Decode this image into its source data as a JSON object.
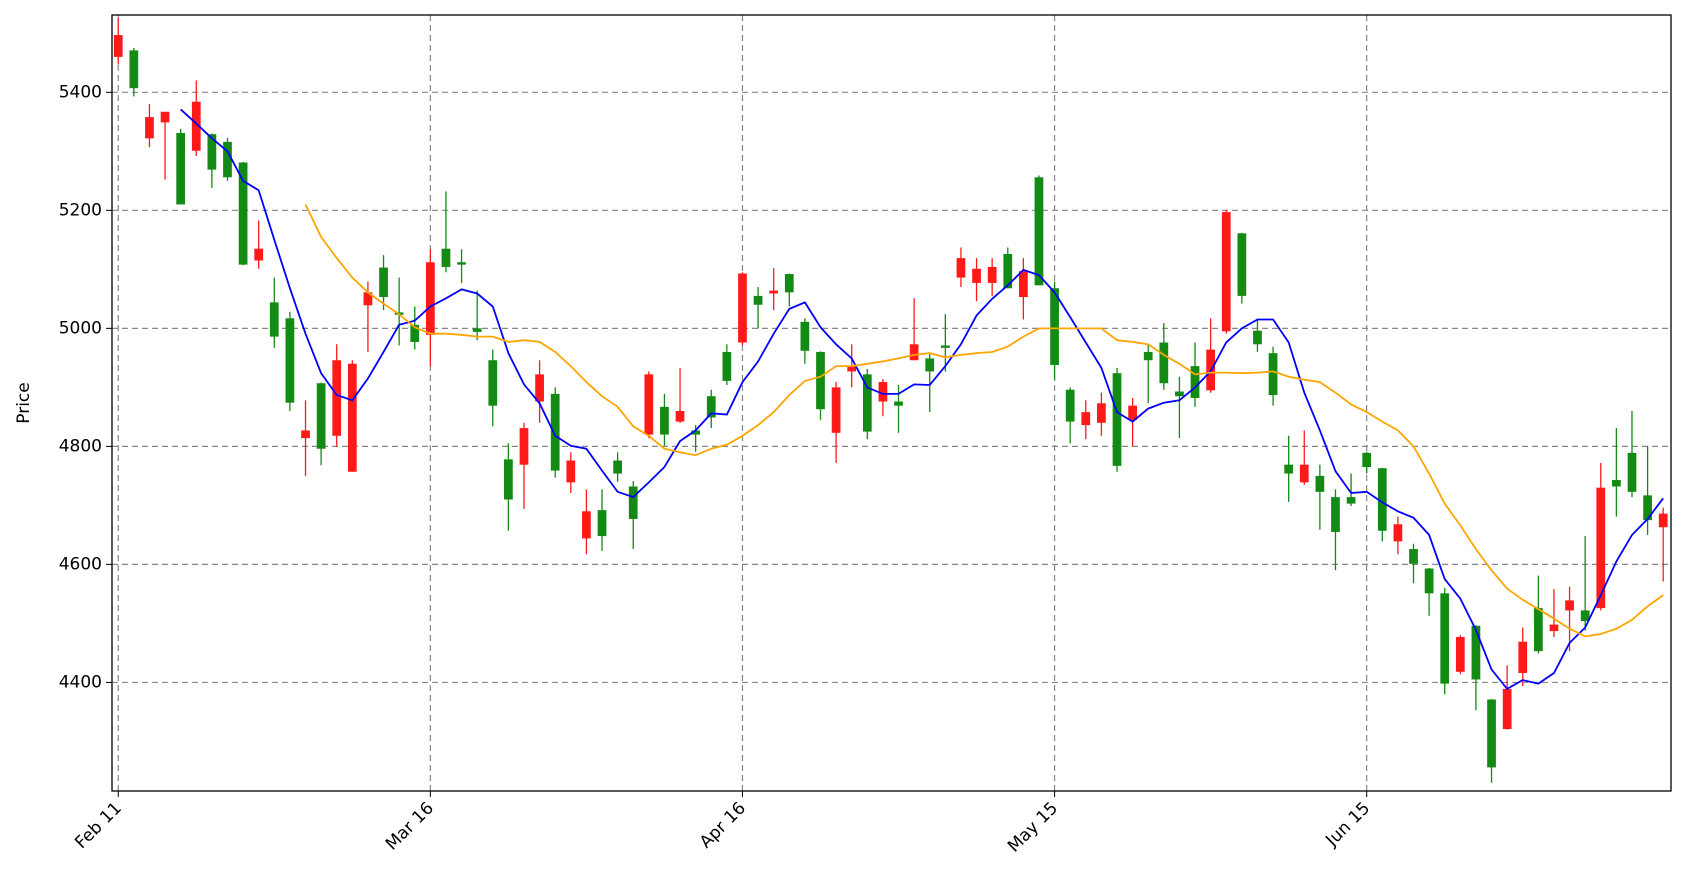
{
  "chart_data": {
    "type": "candlestick",
    "ylabel": "Price",
    "categories": [
      "Feb 11",
      null,
      null,
      null,
      null,
      null,
      null,
      null,
      null,
      null,
      null,
      null,
      null,
      null,
      null,
      null,
      null,
      null,
      null,
      null,
      "Mar 16",
      null,
      null,
      null,
      null,
      null,
      null,
      null,
      null,
      null,
      null,
      null,
      null,
      null,
      null,
      null,
      null,
      null,
      null,
      null,
      "Apr 16",
      null,
      null,
      null,
      null,
      null,
      null,
      null,
      null,
      null,
      null,
      null,
      null,
      null,
      null,
      null,
      null,
      null,
      null,
      null,
      "May 15",
      null,
      null,
      null,
      null,
      null,
      null,
      null,
      null,
      null,
      null,
      null,
      null,
      null,
      null,
      null,
      null,
      null,
      null,
      null,
      "Jun 15",
      null,
      null,
      null,
      null,
      null,
      null,
      null,
      null,
      null,
      null,
      null,
      null,
      null,
      null,
      null,
      null,
      null,
      null,
      null
    ],
    "open": [
      5460,
      5471,
      5322,
      5349,
      5331,
      5301,
      5329,
      5316,
      5281,
      5115,
      5044,
      5017,
      4814,
      4907,
      4818,
      4757,
      5039,
      5103,
      5027,
      5006,
      4989,
      5135,
      5112,
      5000,
      4946,
      4778,
      4769,
      4876,
      4889,
      4739,
      4644,
      4692,
      4776,
      4732,
      4820,
      4867,
      4842,
      4827,
      4885,
      4960,
      4976,
      5055,
      5059,
      5092,
      5011,
      4960,
      4823,
      4927,
      4922,
      4876,
      4876,
      4946,
      4949,
      4971,
      5086,
      5077,
      5077,
      5126,
      5053,
      5256,
      5068,
      4896,
      4836,
      4840,
      4924,
      4845,
      4960,
      4976,
      4893,
      4936,
      4895,
      4995,
      5161,
      4996,
      4958,
      4769,
      4739,
      4750,
      4714,
      4714,
      4789,
      4763,
      4639,
      4626,
      4593,
      4551,
      4418,
      4496,
      4371,
      4321,
      4416,
      4526,
      4487,
      4522,
      4522,
      4526,
      4743,
      4789,
      4717,
      4663
    ],
    "high": [
      5526,
      5475,
      5380,
      5367,
      5338,
      5420,
      5330,
      5323,
      5282,
      5183,
      5086,
      5028,
      4878,
      4908,
      4973,
      4946,
      5079,
      5124,
      5086,
      5037,
      5134,
      5232,
      5134,
      5064,
      4964,
      4805,
      4840,
      4946,
      4900,
      4790,
      4727,
      4727,
      4790,
      4741,
      4927,
      4889,
      4933,
      4836,
      4896,
      4973,
      5095,
      5070,
      5102,
      5093,
      5017,
      4961,
      4909,
      4973,
      4931,
      4914,
      4904,
      5051,
      4958,
      5024,
      5137,
      5119,
      5119,
      5137,
      5119,
      5259,
      5079,
      4900,
      4878,
      4891,
      4933,
      4882,
      4973,
      5009,
      4918,
      4976,
      5017,
      5201,
      5162,
      5015,
      4969,
      4818,
      4827,
      4769,
      4727,
      4754,
      4791,
      4764,
      4681,
      4635,
      4594,
      4560,
      4480,
      4497,
      4372,
      4429,
      4493,
      4581,
      4558,
      4562,
      4648,
      4772,
      4831,
      4860,
      4800,
      4696
    ],
    "low": [
      5447,
      5393,
      5307,
      5252,
      5210,
      5292,
      5238,
      5250,
      5107,
      5101,
      4967,
      4860,
      4750,
      4768,
      4800,
      4757,
      4960,
      5031,
      4971,
      4964,
      4936,
      5095,
      5077,
      4980,
      4834,
      4657,
      4694,
      4840,
      4747,
      4721,
      4617,
      4623,
      4740,
      4626,
      4814,
      4801,
      4840,
      4791,
      4831,
      4904,
      4971,
      5000,
      5031,
      5037,
      4940,
      4845,
      4772,
      4900,
      4812,
      4851,
      4823,
      4946,
      4858,
      4927,
      5070,
      5046,
      5055,
      5068,
      5015,
      5073,
      4913,
      4805,
      4812,
      4818,
      4757,
      4800,
      4873,
      4896,
      4814,
      4867,
      4891,
      4991,
      5042,
      4960,
      4869,
      4706,
      4735,
      4659,
      4590,
      4699,
      4754,
      4639,
      4617,
      4568,
      4513,
      4380,
      4414,
      4353,
      4230,
      4320,
      4394,
      4449,
      4477,
      4453,
      4488,
      4522,
      4681,
      4714,
      4650,
      4571
    ],
    "close": [
      5497,
      5407,
      5358,
      5367,
      5210,
      5384,
      5269,
      5256,
      5108,
      5135,
      4986,
      4874,
      4827,
      4796,
      4946,
      4940,
      5061,
      5053,
      5023,
      4977,
      5112,
      5104,
      5108,
      4994,
      4869,
      4710,
      4831,
      4922,
      4759,
      4776,
      4690,
      4648,
      4754,
      4677,
      4922,
      4820,
      4860,
      4820,
      4849,
      4911,
      5093,
      5040,
      5064,
      5061,
      4962,
      4863,
      4900,
      4936,
      4825,
      4909,
      4869,
      4973,
      4927,
      4967,
      5119,
      5101,
      5104,
      5068,
      5097,
      5073,
      4938,
      4842,
      4858,
      4873,
      4767,
      4869,
      4946,
      4907,
      4885,
      4882,
      4964,
      5197,
      5055,
      4973,
      4887,
      4754,
      4769,
      4723,
      4655,
      4703,
      4765,
      4657,
      4668,
      4601,
      4551,
      4398,
      4477,
      4405,
      4256,
      4389,
      4469,
      4453,
      4498,
      4539,
      4504,
      4730,
      4732,
      4723,
      4675,
      4686
    ],
    "up_color": "#ff1a1a",
    "down_color": "#138a13",
    "lines": [
      {
        "color": "#0000ff",
        "values": [
          null,
          null,
          null,
          null,
          5371,
          5347,
          5322,
          5300,
          5250,
          5234,
          5150,
          5068,
          4991,
          4924,
          4887,
          4878,
          4915,
          4960,
          5006,
          5013,
          5037,
          5051,
          5066,
          5059,
          5037,
          4958,
          4905,
          4873,
          4818,
          4801,
          4796,
          4759,
          4723,
          4714,
          4739,
          4765,
          4809,
          4827,
          4856,
          4854,
          4909,
          4944,
          4991,
          5033,
          5044,
          5002,
          4973,
          4949,
          4900,
          4889,
          4889,
          4905,
          4904,
          4936,
          4973,
          5022,
          5050,
          5073,
          5099,
          5090,
          5061,
          5019,
          4976,
          4933,
          4858,
          4842,
          4864,
          4874,
          4878,
          4900,
          4927,
          4976,
          5000,
          5015,
          5015,
          4976,
          4891,
          4827,
          4758,
          4721,
          4723,
          4705,
          4690,
          4679,
          4650,
          4575,
          4542,
          4489,
          4422,
          4389,
          4404,
          4398,
          4416,
          4467,
          4493,
          4548,
          4605,
          4650,
          4677,
          4712
        ]
      },
      {
        "color": "#ffa500",
        "values": [
          null,
          null,
          null,
          null,
          null,
          null,
          null,
          null,
          null,
          null,
          null,
          null,
          5210,
          5155,
          5119,
          5086,
          5061,
          5042,
          5024,
          5002,
          4991,
          4991,
          4989,
          4986,
          4986,
          4977,
          4980,
          4977,
          4960,
          4936,
          4909,
          4885,
          4867,
          4834,
          4818,
          4796,
          4790,
          4785,
          4796,
          4803,
          4818,
          4836,
          4858,
          4887,
          4911,
          4918,
          4936,
          4936,
          4940,
          4944,
          4949,
          4955,
          4958,
          4951,
          4955,
          4958,
          4960,
          4969,
          4986,
          5000,
          5000,
          5000,
          5000,
          5000,
          4980,
          4977,
          4973,
          4955,
          4940,
          4922,
          4925,
          4925,
          4924,
          4925,
          4927,
          4918,
          4913,
          4909,
          4891,
          4871,
          4858,
          4842,
          4827,
          4800,
          4754,
          4703,
          4666,
          4626,
          4590,
          4559,
          4540,
          4524,
          4508,
          4491,
          4478,
          4482,
          4491,
          4506,
          4529,
          4548
        ]
      }
    ],
    "ylim": [
      4216,
      5531
    ],
    "yticks": [
      4400,
      4600,
      4800,
      5000,
      5200,
      5400
    ],
    "grid": true
  }
}
